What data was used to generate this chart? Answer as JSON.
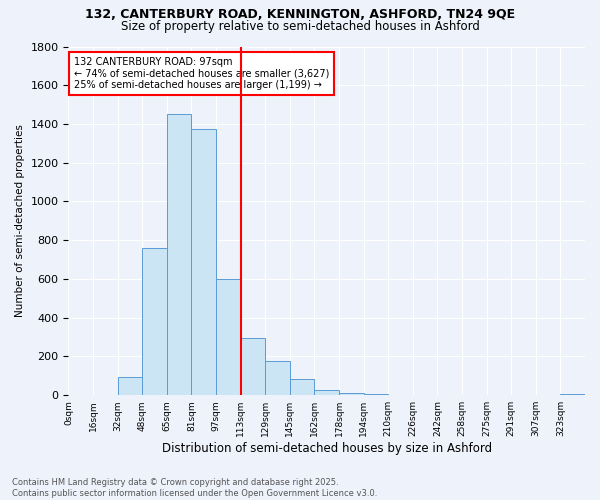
{
  "title_line1": "132, CANTERBURY ROAD, KENNINGTON, ASHFORD, TN24 9QE",
  "title_line2": "Size of property relative to semi-detached houses in Ashford",
  "xlabel": "Distribution of semi-detached houses by size in Ashford",
  "ylabel": "Number of semi-detached properties",
  "footer_line1": "Contains HM Land Registry data © Crown copyright and database right 2025.",
  "footer_line2": "Contains public sector information licensed under the Open Government Licence v3.0.",
  "annotation_title": "132 CANTERBURY ROAD: 97sqm",
  "annotation_line2": "← 74% of semi-detached houses are smaller (3,627)",
  "annotation_line3": "25% of semi-detached houses are larger (1,199) →",
  "vline_bin_index": 6,
  "bin_labels": [
    "0sqm",
    "16sqm",
    "32sqm",
    "48sqm",
    "65sqm",
    "81sqm",
    "97sqm",
    "113sqm",
    "129sqm",
    "145sqm",
    "162sqm",
    "178sqm",
    "194sqm",
    "210sqm",
    "226sqm",
    "242sqm",
    "258sqm",
    "275sqm",
    "291sqm",
    "307sqm",
    "323sqm"
  ],
  "bar_heights": [
    2,
    2,
    95,
    760,
    1450,
    1375,
    600,
    295,
    175,
    85,
    25,
    10,
    5,
    2,
    0,
    0,
    0,
    0,
    0,
    0,
    5
  ],
  "bar_color": "#cce5f5",
  "bar_edge_color": "#5b9bd5",
  "vline_color": "red",
  "ylim": [
    0,
    1800
  ],
  "yticks": [
    0,
    200,
    400,
    600,
    800,
    1000,
    1200,
    1400,
    1600,
    1800
  ],
  "background_color": "#eef2fb",
  "grid_color": "#ffffff",
  "annotation_box_color": "#ffffff",
  "annotation_box_edge": "red",
  "title1_fontsize": 9,
  "title2_fontsize": 8.5,
  "ylabel_fontsize": 7.5,
  "xlabel_fontsize": 8.5,
  "ytick_fontsize": 8,
  "xtick_fontsize": 6.5,
  "footer_fontsize": 6,
  "annotation_fontsize": 7
}
